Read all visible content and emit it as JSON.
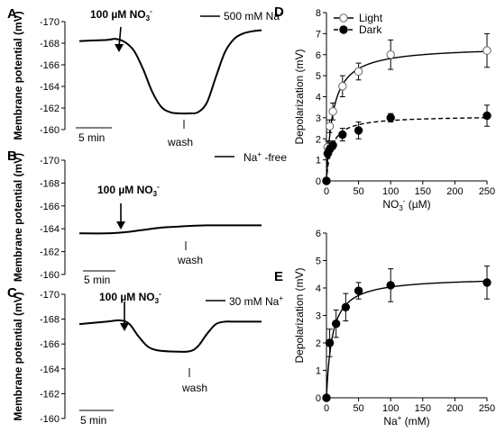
{
  "chart_data": [
    {
      "panel": "A",
      "type": "line",
      "ylabel": "Membrane potential (mV)",
      "y_ticks": [
        "-170",
        "-168",
        "-166",
        "-164",
        "-162",
        "-160"
      ],
      "ylim": [
        -170,
        -160
      ],
      "y_inverted": true,
      "annotations": {
        "stimulus": "100 µM NO",
        "stimulus_sub": "3",
        "stimulus_sup": "-",
        "legend": "500 mM Na",
        "legend_sup": "+",
        "wash": "wash",
        "scale_bar": "5 min"
      },
      "series": [
        {
          "t_min": [
            0,
            3,
            4,
            5,
            6,
            7,
            8,
            9,
            10,
            11,
            12,
            13,
            14,
            15,
            16,
            17,
            18,
            19,
            20
          ],
          "mV": [
            -168.2,
            -168.3,
            -168.4,
            -168.1,
            -167.3,
            -165.6,
            -163.5,
            -162.1,
            -161.6,
            -161.5,
            -161.5,
            -161.6,
            -162.5,
            -164.9,
            -167.2,
            -168.4,
            -168.9,
            -169.1,
            -169.2
          ]
        }
      ]
    },
    {
      "panel": "B",
      "type": "line",
      "ylabel": "Membrane potential (mV)",
      "y_ticks": [
        "-170",
        "-168",
        "-166",
        "-164",
        "-162",
        "-160"
      ],
      "ylim": [
        -170,
        -160
      ],
      "y_inverted": true,
      "annotations": {
        "stimulus": "100 µM NO",
        "stimulus_sub": "3",
        "stimulus_sup": "-",
        "legend": "Na",
        "legend_sup": "+",
        "legend_suffix": " -free",
        "wash": "wash",
        "scale_bar": "5 min"
      },
      "series": [
        {
          "t_min": [
            0,
            3,
            5,
            7,
            9,
            11,
            14,
            20
          ],
          "mV": [
            -163.6,
            -163.6,
            -163.7,
            -163.9,
            -164.1,
            -164.2,
            -164.3,
            -164.3
          ]
        }
      ]
    },
    {
      "panel": "C",
      "type": "line",
      "ylabel": "Membrane potential (mV)",
      "y_ticks": [
        "-170",
        "-168",
        "-166",
        "-164",
        "-162",
        "-160"
      ],
      "ylim": [
        -170,
        -160
      ],
      "y_inverted": true,
      "annotations": {
        "stimulus": "100 µM NO",
        "stimulus_sub": "3",
        "stimulus_sup": "-",
        "legend": "30 mM Na",
        "legend_sup": "+",
        "wash": "wash",
        "scale_bar": "5 min"
      },
      "series": [
        {
          "t_min": [
            0,
            3,
            4.5,
            5.5,
            6.5,
            7.5,
            8.5,
            10,
            12,
            13,
            14,
            15,
            16,
            17,
            20
          ],
          "mV": [
            -167.6,
            -167.8,
            -167.9,
            -167.6,
            -166.6,
            -165.8,
            -165.5,
            -165.4,
            -165.4,
            -165.8,
            -166.8,
            -167.6,
            -167.8,
            -167.8,
            -167.8
          ]
        }
      ]
    },
    {
      "panel": "D",
      "type": "scatter",
      "xlabel": "NO",
      "xlabel_sub": "3",
      "xlabel_sup": "-",
      "xlabel_unit": " (µM)",
      "ylabel": "Depolarization (mV)",
      "xlim": [
        0,
        250
      ],
      "ylim": [
        0,
        8
      ],
      "x_ticks": [
        "0",
        "50",
        "100",
        "150",
        "200",
        "250"
      ],
      "y_ticks": [
        "0",
        "1",
        "2",
        "3",
        "4",
        "5",
        "6",
        "7",
        "8"
      ],
      "legend_position": "top-left",
      "series": [
        {
          "name": "Light",
          "marker": "open-circle",
          "fit": "solid",
          "x": [
            0,
            2,
            5,
            10,
            25,
            50,
            100,
            250
          ],
          "y": [
            0,
            1.6,
            2.6,
            3.3,
            4.5,
            5.2,
            6.0,
            6.2
          ],
          "err": [
            0,
            0.3,
            0.3,
            0.4,
            0.5,
            0.4,
            0.7,
            0.8
          ],
          "fit_vmax": 6.4,
          "fit_km": 10
        },
        {
          "name": "Dark",
          "marker": "filled-circle",
          "fit": "dashed",
          "x": [
            0,
            2,
            5,
            10,
            25,
            50,
            100,
            250
          ],
          "y": [
            0,
            1.3,
            1.5,
            1.7,
            2.2,
            2.4,
            3.0,
            3.1
          ],
          "err": [
            0,
            0.2,
            0.2,
            0.2,
            0.3,
            0.4,
            0.2,
            0.5
          ],
          "fit_vmax": 3.1,
          "fit_km": 8
        }
      ]
    },
    {
      "panel": "E",
      "type": "scatter",
      "xlabel": "Na",
      "xlabel_sup": "+",
      "xlabel_unit": " (mM)",
      "ylabel": "Depolarization (mV)",
      "xlim": [
        0,
        250
      ],
      "ylim": [
        0,
        6
      ],
      "x_ticks": [
        "0",
        "50",
        "100",
        "150",
        "200",
        "250"
      ],
      "y_ticks": [
        "0",
        "1",
        "2",
        "3",
        "4",
        "5",
        "6"
      ],
      "series": [
        {
          "marker": "filled-circle",
          "fit": "solid",
          "x": [
            0,
            5,
            15,
            30,
            50,
            100,
            250
          ],
          "y": [
            0,
            2.0,
            2.7,
            3.3,
            3.9,
            4.1,
            4.2
          ],
          "err": [
            0,
            0.5,
            0.5,
            0.5,
            0.3,
            0.6,
            0.6
          ],
          "fit_vmax": 4.4,
          "fit_km": 9
        }
      ]
    }
  ]
}
